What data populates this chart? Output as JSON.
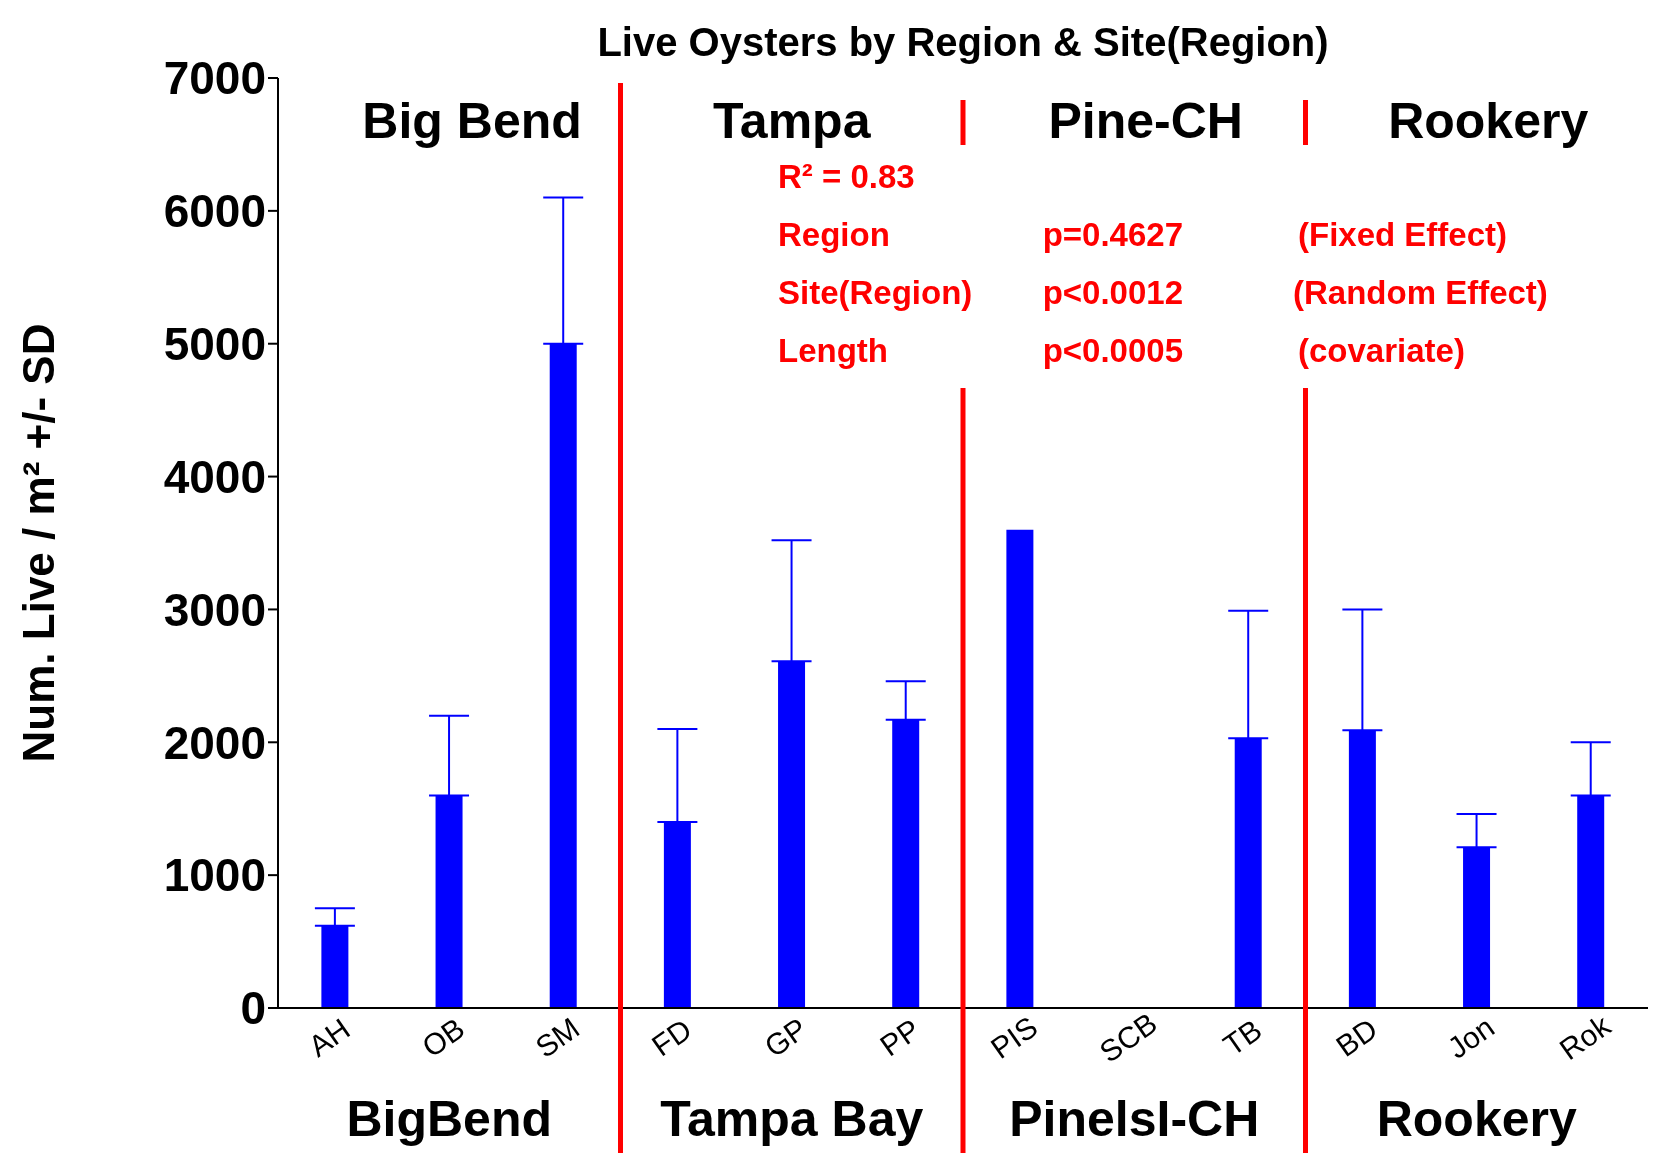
{
  "chart_data": {
    "type": "bar",
    "title": "Live Oysters by Region & Site(Region)",
    "ylabel": "Num. Live / m² +/- SD",
    "categories": [
      "AH",
      "OB",
      "SM",
      "FD",
      "GP",
      "PP",
      "PIS",
      "SCB",
      "TB",
      "BD",
      "Jon",
      "Rok"
    ],
    "values": [
      620,
      1600,
      5000,
      1400,
      2610,
      2170,
      3600,
      null,
      2030,
      2090,
      1210,
      1600
    ],
    "errors": [
      [
        620,
        750
      ],
      [
        1600,
        2200
      ],
      [
        5000,
        6100
      ],
      [
        1400,
        2100
      ],
      [
        2610,
        3520
      ],
      [
        2170,
        2460
      ],
      null,
      null,
      [
        2030,
        2990
      ],
      [
        2090,
        3000
      ],
      [
        1210,
        1460
      ],
      [
        1600,
        2000
      ]
    ],
    "color": "#0000ff",
    "ylim": [
      0,
      7000
    ],
    "yticks": [
      0,
      1000,
      2000,
      3000,
      4000,
      5000,
      6000,
      7000
    ],
    "annotations": [
      "R² = 0.83",
      "Region",
      "p=0.4627",
      "(Fixed Effect)",
      "Site(Region)",
      "p<0.0012",
      "(Random Effect)",
      "Length",
      "p<0.0005",
      "(covariate)",
      "Big Bend",
      "Tampa",
      "Pine-CH",
      "Rookery",
      "BigBend",
      "Tampa Bay",
      "PinelsI-CH",
      "Rookery"
    ]
  }
}
